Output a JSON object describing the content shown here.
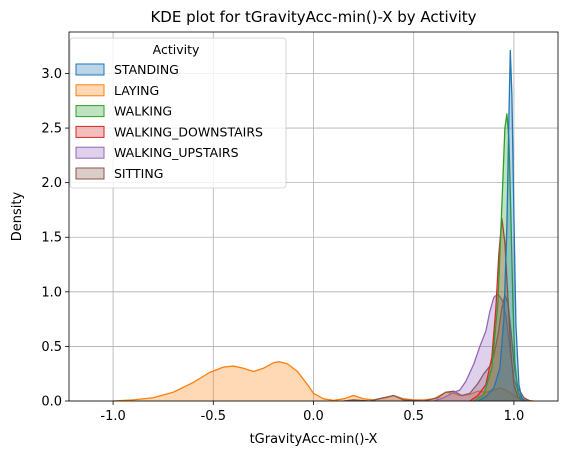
{
  "chart_data": {
    "type": "area",
    "title": "KDE plot for tGravityAcc-min()-X by Activity",
    "xlabel": "tGravityAcc-min()-X",
    "ylabel": "Density",
    "xlim": [
      -1.22,
      1.22
    ],
    "ylim": [
      0,
      3.38
    ],
    "x_ticks": [
      -1.0,
      -0.5,
      0.0,
      0.5,
      1.0
    ],
    "x_tick_labels": [
      "-1.0",
      "-0.5",
      "0.0",
      "0.5",
      "1.0"
    ],
    "y_ticks": [
      0.0,
      0.5,
      1.0,
      1.5,
      2.0,
      2.5,
      3.0
    ],
    "y_tick_labels": [
      "0.0",
      "0.5",
      "1.0",
      "1.5",
      "2.0",
      "2.5",
      "3.0"
    ],
    "grid": true,
    "legend": {
      "title": "Activity",
      "placement": "top-left"
    },
    "series": [
      {
        "name": "LAYING",
        "color": "#ff7f0e",
        "points": [
          [
            -1.0,
            0.0
          ],
          [
            -0.9,
            0.01
          ],
          [
            -0.8,
            0.03
          ],
          [
            -0.7,
            0.08
          ],
          [
            -0.6,
            0.17
          ],
          [
            -0.52,
            0.26
          ],
          [
            -0.45,
            0.31
          ],
          [
            -0.4,
            0.32
          ],
          [
            -0.35,
            0.3
          ],
          [
            -0.3,
            0.27
          ],
          [
            -0.25,
            0.3
          ],
          [
            -0.2,
            0.35
          ],
          [
            -0.17,
            0.36
          ],
          [
            -0.13,
            0.34
          ],
          [
            -0.08,
            0.27
          ],
          [
            -0.03,
            0.15
          ],
          [
            0.0,
            0.07
          ],
          [
            0.05,
            0.02
          ],
          [
            0.1,
            0.005
          ],
          [
            0.15,
            0.02
          ],
          [
            0.2,
            0.05
          ],
          [
            0.25,
            0.02
          ],
          [
            0.3,
            0.01
          ],
          [
            0.36,
            0.03
          ],
          [
            0.4,
            0.05
          ],
          [
            0.45,
            0.02
          ],
          [
            0.5,
            0.01
          ],
          [
            0.55,
            0.01
          ],
          [
            0.6,
            0.02
          ],
          [
            0.66,
            0.08
          ],
          [
            0.7,
            0.07
          ],
          [
            0.73,
            0.05
          ],
          [
            0.78,
            0.06
          ],
          [
            0.82,
            0.09
          ],
          [
            0.86,
            0.08
          ],
          [
            0.9,
            0.1
          ],
          [
            0.93,
            0.12
          ],
          [
            0.96,
            0.1
          ],
          [
            1.0,
            0.05
          ],
          [
            1.05,
            0.01
          ],
          [
            1.1,
            0.0
          ]
        ]
      },
      {
        "name": "SITTING",
        "color": "#8c564b",
        "points": [
          [
            0.15,
            0.0
          ],
          [
            0.2,
            0.01
          ],
          [
            0.28,
            0.0
          ],
          [
            0.35,
            0.03
          ],
          [
            0.4,
            0.05
          ],
          [
            0.45,
            0.01
          ],
          [
            0.55,
            0.0
          ],
          [
            0.62,
            0.03
          ],
          [
            0.66,
            0.08
          ],
          [
            0.7,
            0.09
          ],
          [
            0.74,
            0.05
          ],
          [
            0.78,
            0.07
          ],
          [
            0.82,
            0.16
          ],
          [
            0.85,
            0.25
          ],
          [
            0.88,
            0.32
          ],
          [
            0.9,
            0.42
          ],
          [
            0.92,
            0.6
          ],
          [
            0.94,
            0.85
          ],
          [
            0.955,
            0.97
          ],
          [
            0.97,
            0.9
          ],
          [
            0.985,
            0.65
          ],
          [
            1.0,
            0.35
          ],
          [
            1.02,
            0.12
          ],
          [
            1.05,
            0.03
          ],
          [
            1.08,
            0.0
          ]
        ]
      },
      {
        "name": "WALKING_UPSTAIRS",
        "color": "#9467bd",
        "points": [
          [
            0.6,
            0.0
          ],
          [
            0.65,
            0.03
          ],
          [
            0.7,
            0.08
          ],
          [
            0.73,
            0.1
          ],
          [
            0.76,
            0.18
          ],
          [
            0.8,
            0.34
          ],
          [
            0.83,
            0.5
          ],
          [
            0.86,
            0.64
          ],
          [
            0.88,
            0.82
          ],
          [
            0.9,
            0.95
          ],
          [
            0.92,
            0.98
          ],
          [
            0.94,
            0.93
          ],
          [
            0.96,
            0.78
          ],
          [
            0.98,
            0.48
          ],
          [
            1.0,
            0.2
          ],
          [
            1.03,
            0.05
          ],
          [
            1.06,
            0.0
          ]
        ]
      },
      {
        "name": "WALKING_DOWNSTAIRS",
        "color": "#d62728",
        "points": [
          [
            0.78,
            0.0
          ],
          [
            0.82,
            0.05
          ],
          [
            0.86,
            0.15
          ],
          [
            0.89,
            0.4
          ],
          [
            0.91,
            0.85
          ],
          [
            0.925,
            1.35
          ],
          [
            0.94,
            1.67
          ],
          [
            0.955,
            1.45
          ],
          [
            0.97,
            0.95
          ],
          [
            0.985,
            0.45
          ],
          [
            1.0,
            0.15
          ],
          [
            1.02,
            0.03
          ],
          [
            1.05,
            0.0
          ]
        ]
      },
      {
        "name": "WALKING",
        "color": "#2ca02c",
        "points": [
          [
            0.8,
            0.0
          ],
          [
            0.85,
            0.06
          ],
          [
            0.89,
            0.3
          ],
          [
            0.92,
            0.9
          ],
          [
            0.94,
            1.8
          ],
          [
            0.955,
            2.5
          ],
          [
            0.965,
            2.63
          ],
          [
            0.975,
            2.4
          ],
          [
            0.985,
            1.7
          ],
          [
            0.995,
            0.9
          ],
          [
            1.005,
            0.35
          ],
          [
            1.02,
            0.08
          ],
          [
            1.04,
            0.0
          ]
        ]
      },
      {
        "name": "STANDING",
        "color": "#1f77b4",
        "points": [
          [
            0.82,
            0.0
          ],
          [
            0.86,
            0.04
          ],
          [
            0.9,
            0.12
          ],
          [
            0.93,
            0.3
          ],
          [
            0.95,
            0.75
          ],
          [
            0.965,
            1.6
          ],
          [
            0.975,
            2.6
          ],
          [
            0.982,
            3.21
          ],
          [
            0.99,
            2.8
          ],
          [
            1.0,
            1.7
          ],
          [
            1.01,
            0.7
          ],
          [
            1.025,
            0.15
          ],
          [
            1.04,
            0.02
          ],
          [
            1.06,
            0.0
          ]
        ]
      }
    ]
  }
}
